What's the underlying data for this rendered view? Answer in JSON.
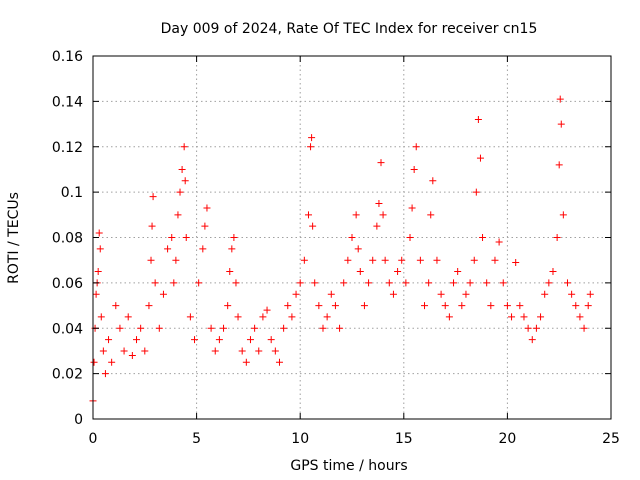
{
  "chart_data": {
    "type": "scatter",
    "title": "Day 009 of 2024, Rate Of TEC Index for receiver cn15",
    "xlabel": "GPS time / hours",
    "ylabel": "ROTI / TECUs",
    "xlim": [
      0,
      25
    ],
    "ylim": [
      0,
      0.16
    ],
    "xticks": [
      0,
      5,
      10,
      15,
      20,
      25
    ],
    "yticks": [
      0,
      0.02,
      0.04,
      0.06,
      0.08,
      0.1,
      0.12,
      0.14,
      0.16
    ],
    "xtick_labels": [
      "0",
      "5",
      "10",
      "15",
      "20",
      "25"
    ],
    "ytick_labels": [
      "0",
      "0.02",
      "0.04",
      "0.06",
      "0.08",
      "0.1",
      "0.12",
      "0.14",
      "0.16"
    ],
    "grid": true,
    "marker": "plus",
    "color": "#ff0000",
    "series": [
      {
        "name": "ROTI",
        "x": [
          0.0,
          0.05,
          0.1,
          0.15,
          0.2,
          0.25,
          0.3,
          0.35,
          0.4,
          0.5,
          0.6,
          0.75,
          0.9,
          1.1,
          1.3,
          1.5,
          1.7,
          1.9,
          2.1,
          2.3,
          2.5,
          2.7,
          2.8,
          2.85,
          2.9,
          3.0,
          3.2,
          3.4,
          3.6,
          3.8,
          3.9,
          4.0,
          4.1,
          4.2,
          4.3,
          4.4,
          4.45,
          4.5,
          4.7,
          4.9,
          5.1,
          5.3,
          5.4,
          5.5,
          5.7,
          5.9,
          6.1,
          6.3,
          6.5,
          6.6,
          6.7,
          6.8,
          6.9,
          7.0,
          7.2,
          7.4,
          7.6,
          7.8,
          8.0,
          8.2,
          8.4,
          8.6,
          8.8,
          9.0,
          9.2,
          9.4,
          9.6,
          9.8,
          10.0,
          10.2,
          10.4,
          10.5,
          10.55,
          10.6,
          10.7,
          10.9,
          11.1,
          11.3,
          11.5,
          11.7,
          11.9,
          12.1,
          12.3,
          12.5,
          12.7,
          12.8,
          12.9,
          13.1,
          13.3,
          13.5,
          13.7,
          13.8,
          13.9,
          14.0,
          14.1,
          14.3,
          14.5,
          14.7,
          14.9,
          15.1,
          15.3,
          15.4,
          15.5,
          15.6,
          15.8,
          16.0,
          16.2,
          16.3,
          16.4,
          16.6,
          16.8,
          17.0,
          17.2,
          17.4,
          17.6,
          17.8,
          18.0,
          18.2,
          18.4,
          18.5,
          18.6,
          18.7,
          18.8,
          19.0,
          19.2,
          19.4,
          19.6,
          19.8,
          20.0,
          20.2,
          20.4,
          20.6,
          20.8,
          21.0,
          21.2,
          21.4,
          21.6,
          21.8,
          22.0,
          22.2,
          22.4,
          22.5,
          22.55,
          22.6,
          22.7,
          22.9,
          23.1,
          23.3,
          23.5,
          23.7,
          23.9,
          24.0
        ],
        "y": [
          0.008,
          0.025,
          0.04,
          0.055,
          0.06,
          0.065,
          0.082,
          0.075,
          0.045,
          0.03,
          0.02,
          0.035,
          0.025,
          0.05,
          0.04,
          0.03,
          0.045,
          0.028,
          0.035,
          0.04,
          0.03,
          0.05,
          0.07,
          0.085,
          0.098,
          0.06,
          0.04,
          0.055,
          0.075,
          0.08,
          0.06,
          0.07,
          0.09,
          0.1,
          0.11,
          0.12,
          0.105,
          0.08,
          0.045,
          0.035,
          0.06,
          0.075,
          0.085,
          0.093,
          0.04,
          0.03,
          0.035,
          0.04,
          0.05,
          0.065,
          0.075,
          0.08,
          0.06,
          0.045,
          0.03,
          0.025,
          0.035,
          0.04,
          0.03,
          0.045,
          0.048,
          0.035,
          0.03,
          0.025,
          0.04,
          0.05,
          0.045,
          0.055,
          0.06,
          0.07,
          0.09,
          0.12,
          0.124,
          0.085,
          0.06,
          0.05,
          0.04,
          0.045,
          0.055,
          0.05,
          0.04,
          0.06,
          0.07,
          0.08,
          0.09,
          0.075,
          0.065,
          0.05,
          0.06,
          0.07,
          0.085,
          0.095,
          0.113,
          0.09,
          0.07,
          0.06,
          0.055,
          0.065,
          0.07,
          0.06,
          0.08,
          0.093,
          0.11,
          0.12,
          0.07,
          0.05,
          0.06,
          0.09,
          0.105,
          0.07,
          0.055,
          0.05,
          0.045,
          0.06,
          0.065,
          0.05,
          0.055,
          0.06,
          0.07,
          0.1,
          0.132,
          0.115,
          0.08,
          0.06,
          0.05,
          0.07,
          0.078,
          0.06,
          0.05,
          0.045,
          0.069,
          0.05,
          0.045,
          0.04,
          0.035,
          0.04,
          0.045,
          0.055,
          0.06,
          0.065,
          0.08,
          0.112,
          0.141,
          0.13,
          0.09,
          0.06,
          0.055,
          0.05,
          0.045,
          0.04,
          0.05,
          0.055
        ]
      }
    ]
  }
}
